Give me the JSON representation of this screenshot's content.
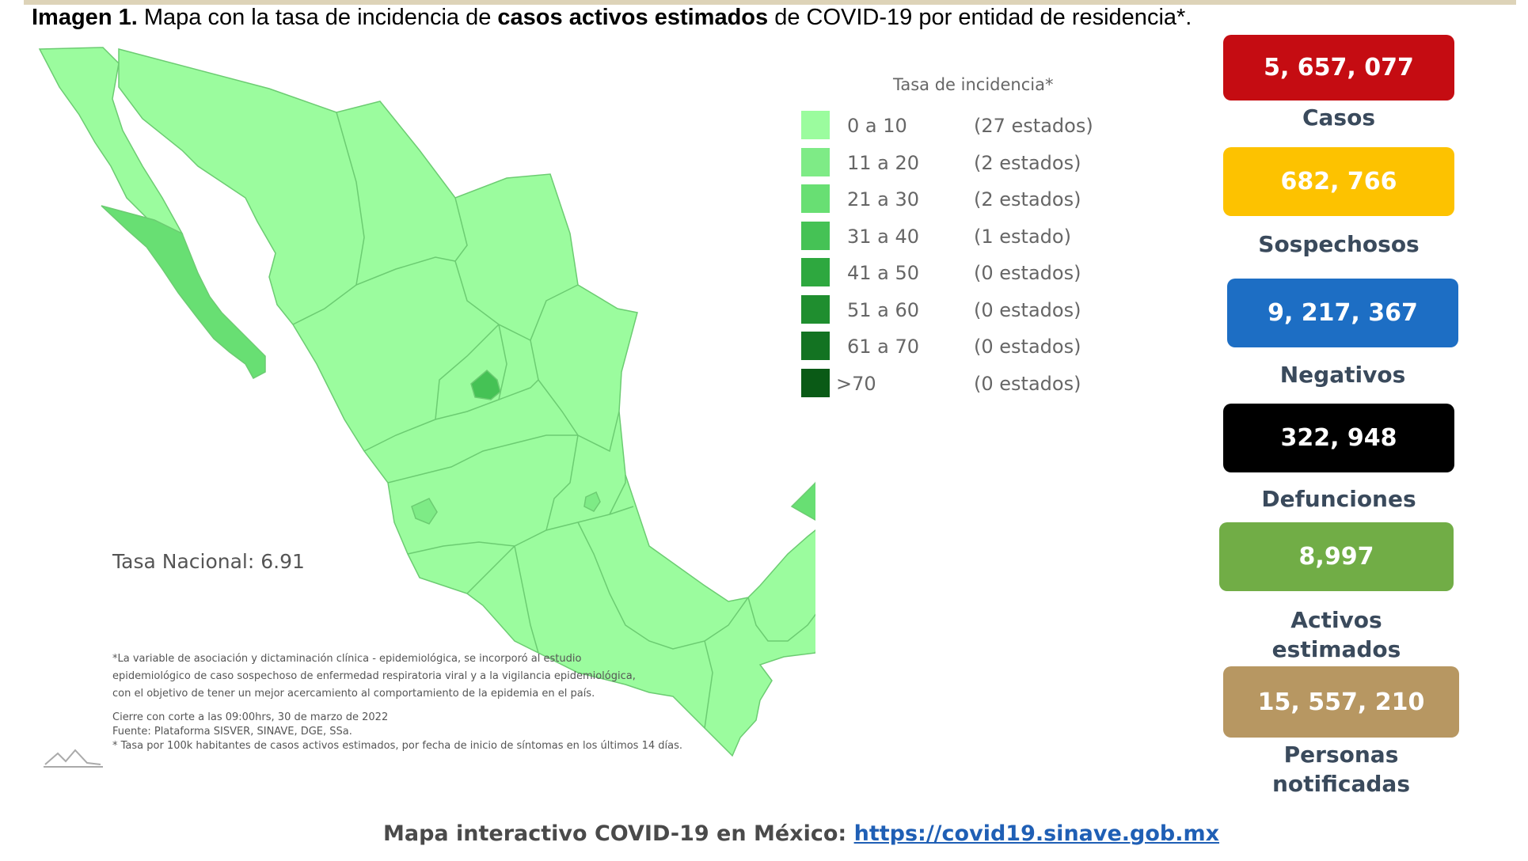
{
  "caption": {
    "label": "Imagen 1.",
    "text_1": " Mapa con la tasa de incidencia de ",
    "bold": "casos activos estimados",
    "text_2": " de COVID-19 por entidad de residencia*."
  },
  "legend": {
    "title": "Tasa de incidencia*",
    "items": [
      {
        "range": "0 a  10",
        "count": "(27 estados)",
        "color": "#9bfc9e"
      },
      {
        "range": "11 a  20",
        "count": "(2 estados)",
        "color": "#7eeb86"
      },
      {
        "range": "21 a  30",
        "count": "(2 estados)",
        "color": "#68df73"
      },
      {
        "range": "31 a  40",
        "count": "(1 estado)",
        "color": "#45c255"
      },
      {
        "range": "41 a  50",
        "count": "(0 estados)",
        "color": "#2ea83f"
      },
      {
        "range": "51 a  60",
        "count": "(0 estados)",
        "color": "#1f8e2f"
      },
      {
        "range": "61 a  70",
        "count": "(0 estados)",
        "color": "#137322"
      },
      {
        "range": ">70",
        "count": "(0 estados)",
        "color": "#0a5a16"
      }
    ]
  },
  "map": {
    "national_rate": "Tasa Nacional: 6.91",
    "notes": [
      "*La variable de asociación y dictaminación clínica - epidemiológica, se incorporó al estudio",
      "epidemiológico de caso sospechoso de enfermedad respiratoria viral y a la vigilancia epidemiológica,",
      "con el objetivo de tener un mejor acercamiento al comportamiento de la epidemia en el país."
    ],
    "sources": [
      "Cierre con corte a las 09:00hrs, 30 de marzo de 2022",
      "Fuente: Plataforma SISVER, SINAVE, DGE, SSa.",
      "* Tasa por 100k habitantes de casos activos estimados, por fecha de inicio de síntomas en los últimos 14 días."
    ],
    "colors": {
      "base": "#9bfc9e",
      "border": "#6ccc72",
      "baja_california_sur": "#68df73",
      "aguascalientes": "#45c255",
      "colima": "#7eeb86",
      "ciudad_de_mexico": "#7eeb86",
      "campeche": "#68df73"
    }
  },
  "stats": [
    {
      "value": "5, 657, 077",
      "label": "Casos",
      "color": "#c50c12"
    },
    {
      "value": "682, 766",
      "label": "Sospechosos",
      "color": "#fdc200"
    },
    {
      "value": "9, 217, 367",
      "label": "Negativos",
      "color": "#1d6ec4"
    },
    {
      "value": "322, 948",
      "label": "Defunciones",
      "color": "#000000"
    },
    {
      "value": "8,997",
      "label": "Activos estimados",
      "color": "#71ad46"
    },
    {
      "value": "15, 557, 210",
      "label": "Personas notificadas",
      "color": "#b79762"
    }
  ],
  "footer": {
    "label": "Mapa interactivo COVID-19 en México: ",
    "link": "https://covid19.sinave.gob.mx"
  }
}
